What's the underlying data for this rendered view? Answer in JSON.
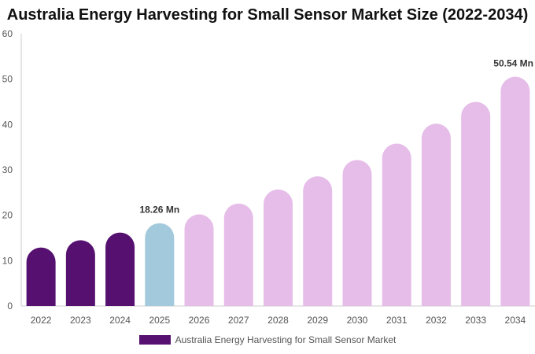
{
  "chart_data": {
    "type": "bar",
    "title": "Australia Energy Harvesting for Small Sensor Market Size (2022-2034)",
    "categories": [
      "2022",
      "2023",
      "2024",
      "2025",
      "2026",
      "2027",
      "2028",
      "2029",
      "2030",
      "2031",
      "2032",
      "2033",
      "2034"
    ],
    "series": [
      {
        "name": "Australia Energy Harvesting for Small Sensor Market",
        "values": [
          12.9,
          14.5,
          16.2,
          18.26,
          20.2,
          22.6,
          25.7,
          28.6,
          32.2,
          35.8,
          40.2,
          45.0,
          50.54
        ]
      }
    ],
    "bar_colors": [
      "#561170",
      "#561170",
      "#561170",
      "#a3c9dd",
      "#e6bde9",
      "#e6bde9",
      "#e6bde9",
      "#e6bde9",
      "#e6bde9",
      "#e6bde9",
      "#e6bde9",
      "#e6bde9",
      "#e6bde9"
    ],
    "data_labels": [
      {
        "index": 3,
        "text": "18.26 Mn"
      },
      {
        "index": 12,
        "text": "50.54 Mn"
      }
    ],
    "yticks": [
      0,
      10,
      20,
      30,
      40,
      50,
      60
    ],
    "ylim": [
      0,
      60
    ],
    "xlabel": "",
    "ylabel": "",
    "grid": false,
    "legend_position": "bottom",
    "legend_color": "#561170"
  }
}
